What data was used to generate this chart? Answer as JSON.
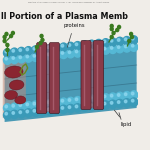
{
  "title": "ll Portion of a Plasma Memb",
  "title_fontsize": 5.8,
  "copyright": "Houghton B. Storer. Biology Visual Resource Library 1. 1987. The McGraw-Hill Companies, Inc. All rights reserved.",
  "label_proteins": "proteins",
  "label_lipid": "lipid",
  "bg_color": "#f0ede8",
  "sphere_outer": "#55b8d5",
  "sphere_inner": "#3a9ab8",
  "sphere_highlight": "#90d8f0",
  "membrane_fill": "#4a9ab5",
  "protein_dark": "#8a3a48",
  "protein_mid": "#a05060",
  "protein_light": "#c07888",
  "green_dark": "#3a7a20",
  "green_light": "#5aaa38",
  "red_blob": "#8a2530",
  "dark_line": "#2a5a70",
  "figsize": [
    1.5,
    1.5
  ],
  "dpi": 100
}
